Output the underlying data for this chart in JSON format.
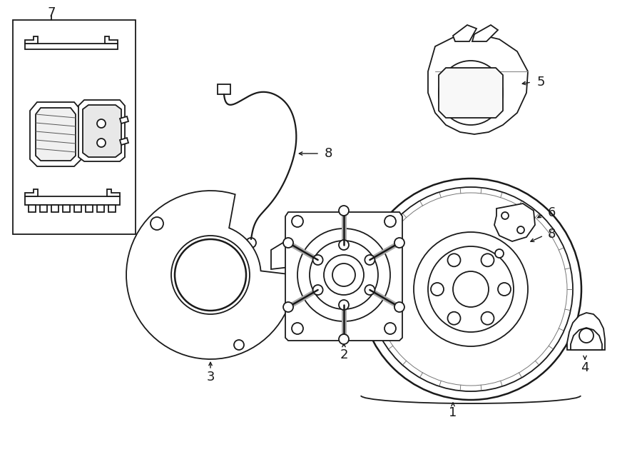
{
  "bg_color": "#ffffff",
  "lc": "#1a1a1a",
  "lw": 1.3,
  "fig_width": 9.0,
  "fig_height": 6.61,
  "dpi": 100
}
